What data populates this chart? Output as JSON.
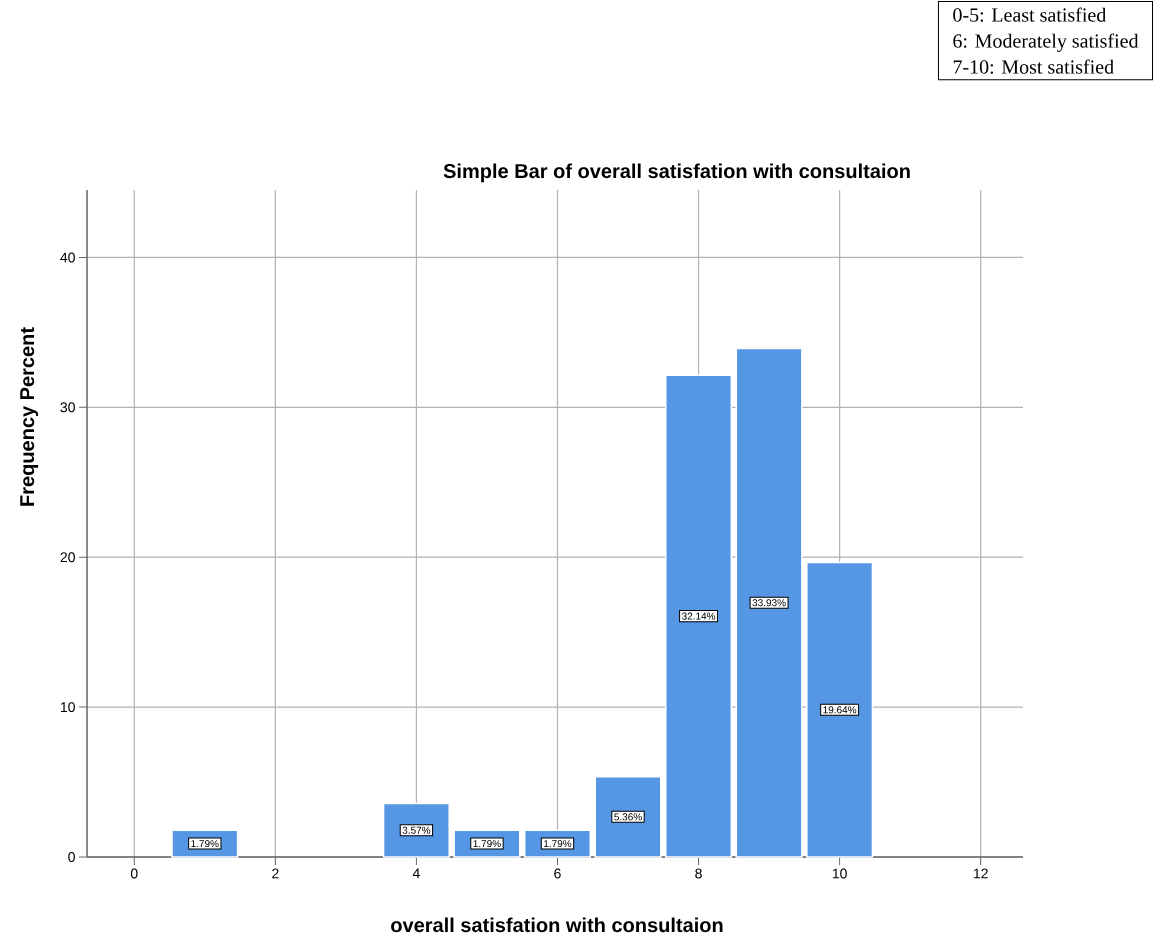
{
  "chart_data": {
    "type": "bar",
    "title": "Simple Bar of overall satisfation with consultaion",
    "xlabel": "overall satisfation with consultaion",
    "ylabel": "Frequency Percent",
    "x": [
      1,
      4,
      5,
      6,
      7,
      8,
      9,
      10
    ],
    "values": [
      1.79,
      3.57,
      1.79,
      1.79,
      5.36,
      32.14,
      33.93,
      19.64
    ],
    "value_labels": [
      "1.79%",
      "3.57%",
      "1.79%",
      "1.79%",
      "5.36%",
      "32.14%",
      "33.93%",
      "19.64%"
    ],
    "color": "#5596e5",
    "xlim": [
      -0.67,
      12.6
    ],
    "ylim": [
      0,
      44.5
    ],
    "xticks": [
      0,
      2,
      4,
      6,
      8,
      10,
      12
    ],
    "yticks": [
      0,
      10,
      20,
      30,
      40
    ],
    "grid": true,
    "annotations": [
      "0-5: Least satisfied",
      "6: Moderately satisfied",
      "7-10: Most satisfied"
    ]
  }
}
